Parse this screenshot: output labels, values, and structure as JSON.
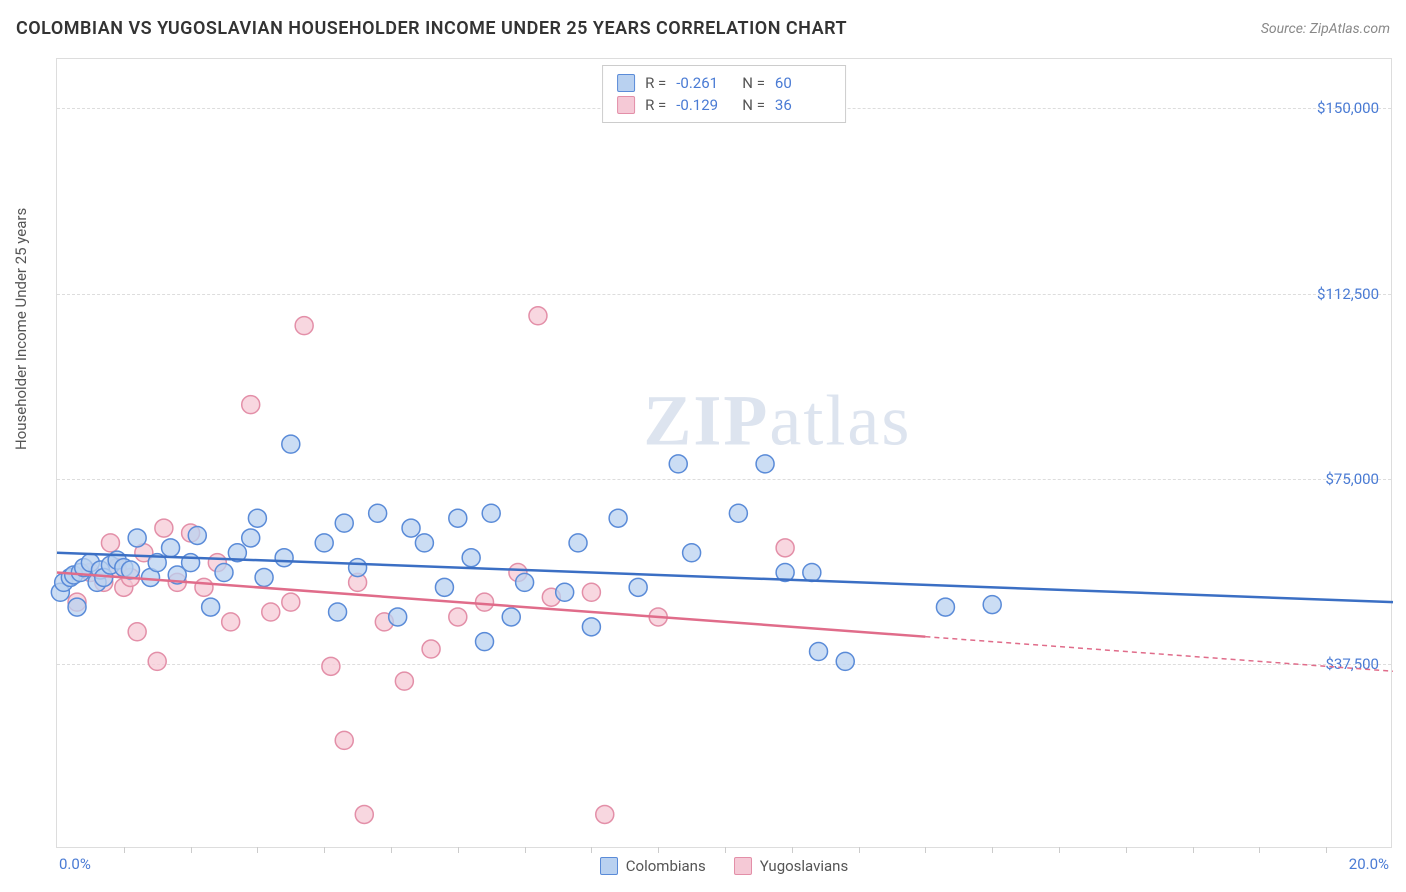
{
  "header": {
    "title": "COLOMBIAN VS YUGOSLAVIAN HOUSEHOLDER INCOME UNDER 25 YEARS CORRELATION CHART",
    "source": "Source: ZipAtlas.com"
  },
  "watermark": {
    "zip": "ZIP",
    "atlas": "atlas"
  },
  "chart": {
    "type": "scatter",
    "background_color": "#ffffff",
    "grid_color": "#dddddd",
    "border_color": "#dddddd",
    "ylabel": "Householder Income Under 25 years",
    "ylabel_fontsize": 15,
    "xlim": [
      0,
      20
    ],
    "ylim": [
      0,
      160000
    ],
    "x_tick_min_label": "0.0%",
    "x_tick_max_label": "20.0%",
    "y_ticks": [
      37500,
      75000,
      112500,
      150000
    ],
    "y_tick_labels": [
      "$37,500",
      "$75,000",
      "$112,500",
      "$150,000"
    ],
    "tick_label_color": "#4a7bd4",
    "tick_label_fontsize": 15,
    "x_minor_ticks_count": 19,
    "marker_radius": 9,
    "marker_stroke_width": 1.5,
    "trend_line_width": 2.5,
    "trend_dash": "5,4",
    "series": [
      {
        "key": "colombians",
        "label": "Colombians",
        "fill": "#b9d1f0",
        "stroke": "#5a8bd8",
        "trend_color": "#3b6fc4",
        "R": "-0.261",
        "N": "60",
        "trend": {
          "x1": 0,
          "y1": 60000,
          "x2": 20,
          "y2": 50000,
          "x_solid_end": 20
        },
        "points": [
          [
            0.05,
            52000
          ],
          [
            0.1,
            54000
          ],
          [
            0.2,
            55000
          ],
          [
            0.25,
            55500
          ],
          [
            0.3,
            49000
          ],
          [
            0.35,
            56000
          ],
          [
            0.4,
            57000
          ],
          [
            0.5,
            58000
          ],
          [
            0.6,
            54000
          ],
          [
            0.65,
            56500
          ],
          [
            0.7,
            55000
          ],
          [
            0.8,
            57500
          ],
          [
            0.9,
            58500
          ],
          [
            1.0,
            57000
          ],
          [
            1.1,
            56500
          ],
          [
            1.2,
            63000
          ],
          [
            1.4,
            55000
          ],
          [
            1.5,
            58000
          ],
          [
            1.7,
            61000
          ],
          [
            1.8,
            55500
          ],
          [
            2.0,
            58000
          ],
          [
            2.1,
            63500
          ],
          [
            2.3,
            49000
          ],
          [
            2.5,
            56000
          ],
          [
            2.7,
            60000
          ],
          [
            2.9,
            63000
          ],
          [
            3.0,
            67000
          ],
          [
            3.1,
            55000
          ],
          [
            3.4,
            59000
          ],
          [
            3.5,
            82000
          ],
          [
            4.0,
            62000
          ],
          [
            4.2,
            48000
          ],
          [
            4.3,
            66000
          ],
          [
            4.5,
            57000
          ],
          [
            4.8,
            68000
          ],
          [
            5.1,
            47000
          ],
          [
            5.3,
            65000
          ],
          [
            5.5,
            62000
          ],
          [
            5.8,
            53000
          ],
          [
            6.0,
            67000
          ],
          [
            6.2,
            59000
          ],
          [
            6.4,
            42000
          ],
          [
            6.5,
            68000
          ],
          [
            6.8,
            47000
          ],
          [
            7.0,
            54000
          ],
          [
            7.6,
            52000
          ],
          [
            7.8,
            62000
          ],
          [
            8.0,
            45000
          ],
          [
            8.4,
            67000
          ],
          [
            8.7,
            53000
          ],
          [
            9.3,
            78000
          ],
          [
            9.5,
            60000
          ],
          [
            10.2,
            68000
          ],
          [
            10.6,
            78000
          ],
          [
            10.9,
            56000
          ],
          [
            11.3,
            56000
          ],
          [
            11.4,
            40000
          ],
          [
            11.8,
            38000
          ],
          [
            13.3,
            49000
          ],
          [
            14.0,
            49500
          ]
        ]
      },
      {
        "key": "yugoslavians",
        "label": "Yugoslavians",
        "fill": "#f5c9d6",
        "stroke": "#e38fa8",
        "trend_color": "#e06c8a",
        "R": "-0.129",
        "N": "36",
        "trend": {
          "x1": 0,
          "y1": 56000,
          "x2": 20,
          "y2": 36000,
          "x_solid_end": 13.0
        },
        "points": [
          [
            0.3,
            50000
          ],
          [
            0.5,
            56000
          ],
          [
            0.7,
            54000
          ],
          [
            0.8,
            62000
          ],
          [
            0.9,
            57000
          ],
          [
            1.0,
            53000
          ],
          [
            1.1,
            55000
          ],
          [
            1.2,
            44000
          ],
          [
            1.3,
            60000
          ],
          [
            1.5,
            38000
          ],
          [
            1.6,
            65000
          ],
          [
            1.8,
            54000
          ],
          [
            2.0,
            64000
          ],
          [
            2.2,
            53000
          ],
          [
            2.4,
            58000
          ],
          [
            2.6,
            46000
          ],
          [
            2.9,
            90000
          ],
          [
            3.2,
            48000
          ],
          [
            3.5,
            50000
          ],
          [
            3.7,
            106000
          ],
          [
            4.1,
            37000
          ],
          [
            4.3,
            22000
          ],
          [
            4.5,
            54000
          ],
          [
            4.6,
            7000
          ],
          [
            4.9,
            46000
          ],
          [
            5.2,
            34000
          ],
          [
            5.6,
            40500
          ],
          [
            6.0,
            47000
          ],
          [
            6.4,
            50000
          ],
          [
            6.9,
            56000
          ],
          [
            7.2,
            108000
          ],
          [
            7.4,
            51000
          ],
          [
            8.0,
            52000
          ],
          [
            8.2,
            7000
          ],
          [
            9.0,
            47000
          ],
          [
            10.9,
            61000
          ]
        ]
      }
    ],
    "stats_box": {
      "r_label": "R =",
      "n_label": "N ="
    },
    "bottom_legend_label_color": "#555555"
  }
}
